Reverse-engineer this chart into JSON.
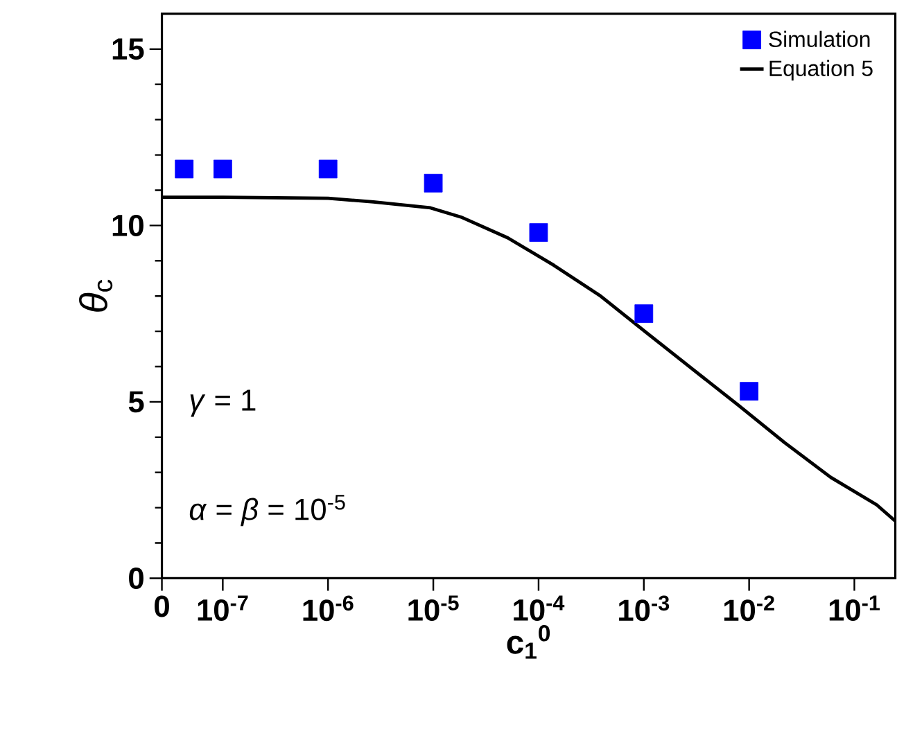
{
  "chart_data": {
    "type": "scatter",
    "xlabel": "c$_{1}$$^{0}$",
    "ylabel": "*θ*$_{c}$",
    "log": "x",
    "xlim": [
      2.64e-08,
      0.245
    ],
    "ylim": [
      0,
      16
    ],
    "xticks": [
      {
        "value": 2.64e-08,
        "label": "0"
      },
      {
        "value": 1e-07,
        "label": "10$^{-7}$"
      },
      {
        "value": 1e-06,
        "label": "10$^{-6}$"
      },
      {
        "value": 1e-05,
        "label": "10$^{-5}$"
      },
      {
        "value": 0.0001,
        "label": "10$^{-4}$"
      },
      {
        "value": 0.001,
        "label": "10$^{-3}$"
      },
      {
        "value": 0.01,
        "label": "10$^{-2}$"
      },
      {
        "value": 0.1,
        "label": "10$^{-1}$"
      }
    ],
    "yticks": [
      0,
      5,
      10,
      15
    ],
    "legend": "top right",
    "annotations": [
      "*γ* = 1",
      "*α* = *β* = 10$^{-5}$"
    ],
    "series": [
      {
        "name": "Simulation",
        "marker": "square",
        "color": "#0000ff",
        "x": [
          4.3e-08,
          1e-07,
          1e-06,
          1e-05,
          0.0001,
          0.001,
          0.01
        ],
        "values": [
          11.6,
          11.6,
          11.6,
          11.2,
          9.8,
          7.5,
          5.3
        ]
      },
      {
        "name": "Equation 5",
        "type": "line",
        "marker": "none",
        "line_style": "solid",
        "color": "#000000",
        "x": [
          2.64e-08,
          1e-07,
          1e-06,
          2.7e-06,
          9.4e-06,
          1.83e-05,
          5.1e-05,
          0.00014,
          0.00038,
          0.00105,
          0.0029,
          0.00785,
          0.0218,
          0.0597,
          0.163,
          0.245
        ],
        "values": [
          10.8,
          10.8,
          10.77,
          10.67,
          10.5,
          10.24,
          9.65,
          8.87,
          8.02,
          6.97,
          5.93,
          4.91,
          3.84,
          2.86,
          2.08,
          1.62
        ]
      }
    ]
  }
}
